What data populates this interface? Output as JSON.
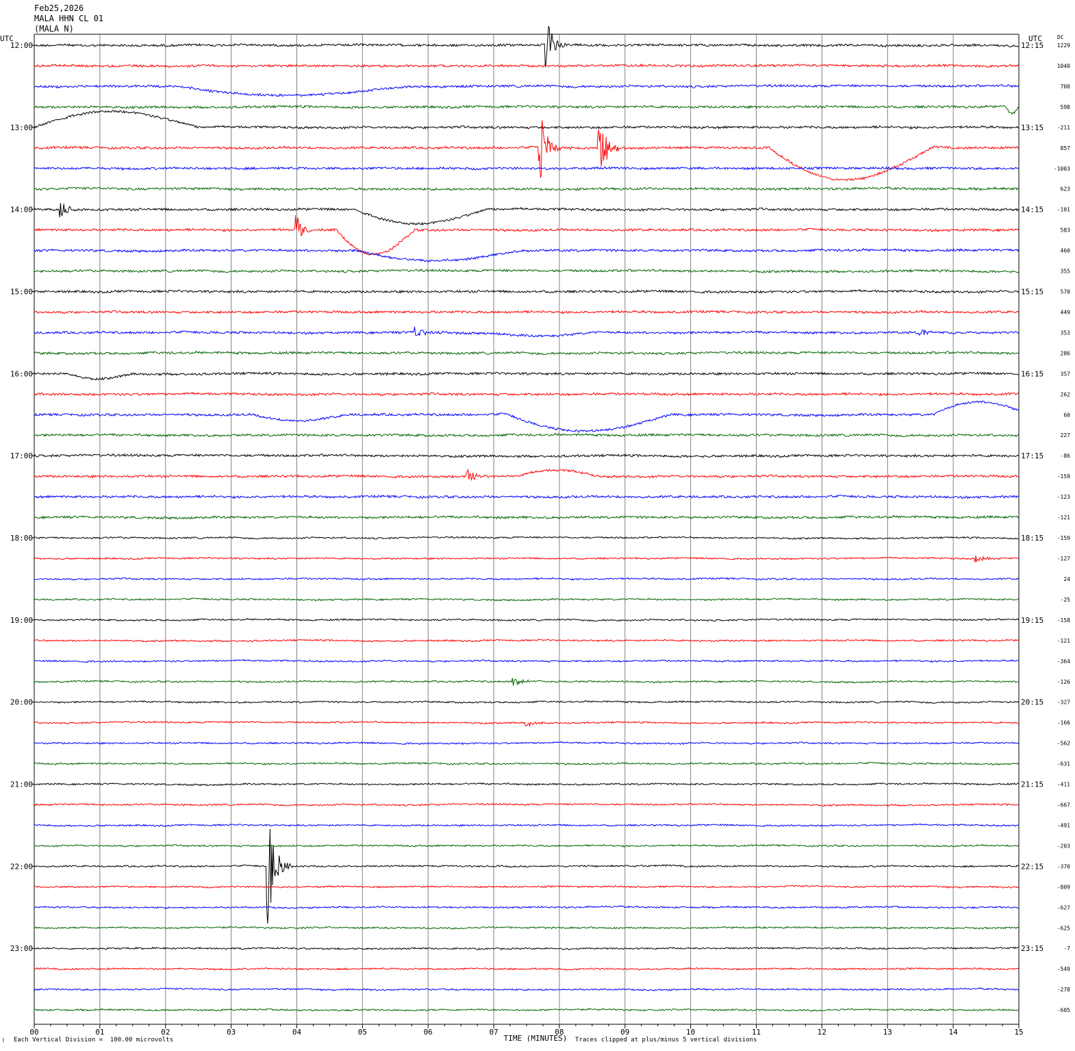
{
  "header": {
    "date": "Feb25,2026",
    "channel": "MALA HHN CL 01",
    "station": "(MALA N)"
  },
  "chart_data": {
    "type": "line",
    "xlabel": "TIME (MINUTES)",
    "x_ticks": [
      "00",
      "01",
      "02",
      "03",
      "04",
      "05",
      "06",
      "07",
      "08",
      "09",
      "10",
      "11",
      "12",
      "13",
      "14",
      "15"
    ],
    "xlim": [
      0,
      15
    ],
    "left_axis_label": "UTC",
    "right_axis_label": "UTC",
    "dc_label": "DC",
    "left_time_labels": [
      "12:00",
      "13:00",
      "14:00",
      "15:00",
      "16:00",
      "17:00",
      "18:00",
      "19:00",
      "20:00",
      "21:00",
      "22:00",
      "23:00"
    ],
    "right_time_labels": [
      "12:15",
      "13:15",
      "14:15",
      "15:15",
      "16:15",
      "17:15",
      "18:15",
      "19:15",
      "20:15",
      "21:15",
      "22:15",
      "23:15"
    ],
    "dc_offsets": [
      "1229",
      "1040",
      "700",
      "598",
      "-211",
      "857",
      "-1003",
      "623",
      "-101",
      "583",
      "460",
      "355",
      "570",
      "449",
      "353",
      "286",
      "357",
      "262",
      "60",
      "227",
      "-86",
      "-159",
      "-123",
      "-121",
      "-159",
      "-127",
      "24",
      "-25",
      "-158",
      "-121",
      "-364",
      "-126",
      "-327",
      "-166",
      "-562",
      "-631",
      "-411",
      "-667",
      "-491",
      "-203",
      "-370",
      "-809",
      "-627",
      "-625",
      "-7",
      "-549",
      "-278",
      "-605"
    ],
    "trace_colors": [
      "#000000",
      "#ff0000",
      "#0000ff",
      "#006400"
    ],
    "grid": true,
    "events": [
      {
        "trace": 0,
        "minute": 7.8,
        "type": "spike",
        "amp": 40
      },
      {
        "trace": 2,
        "minute": 2.2,
        "type": "wave",
        "amp": 16,
        "dur": 3.5
      },
      {
        "trace": 3,
        "minute": 14.8,
        "type": "wave",
        "amp": 12,
        "dur": 0.2
      },
      {
        "trace": 4,
        "minute": 0.0,
        "type": "wave",
        "amp": -28,
        "dur": 2.5
      },
      {
        "trace": 5,
        "minute": 7.7,
        "type": "spike",
        "amp": 60
      },
      {
        "trace": 5,
        "minute": 8.6,
        "type": "spike",
        "amp": 55
      },
      {
        "trace": 5,
        "minute": 11.2,
        "type": "wave",
        "amp": 55,
        "dur": 2.5
      },
      {
        "trace": 8,
        "minute": 0.4,
        "type": "spike",
        "amp": 18
      },
      {
        "trace": 8,
        "minute": 4.9,
        "type": "wave",
        "amp": 24,
        "dur": 2.0
      },
      {
        "trace": 9,
        "minute": 4.0,
        "type": "spike",
        "amp": 22
      },
      {
        "trace": 9,
        "minute": 4.6,
        "type": "wave",
        "amp": 42,
        "dur": 1.2
      },
      {
        "trace": 10,
        "minute": 4.9,
        "type": "wave",
        "amp": 18,
        "dur": 2.5
      },
      {
        "trace": 14,
        "minute": 5.8,
        "type": "spike",
        "amp": 12
      },
      {
        "trace": 14,
        "minute": 7.0,
        "type": "wave",
        "amp": 6,
        "dur": 1.5
      },
      {
        "trace": 14,
        "minute": 13.5,
        "type": "spike",
        "amp": 8
      },
      {
        "trace": 16,
        "minute": 0.5,
        "type": "wave",
        "amp": 8,
        "dur": 1.0
      },
      {
        "trace": 18,
        "minute": 3.3,
        "type": "wave",
        "amp": 10,
        "dur": 1.5
      },
      {
        "trace": 18,
        "minute": 7.2,
        "type": "wave",
        "amp": 28,
        "dur": 2.5
      },
      {
        "trace": 18,
        "minute": 13.7,
        "type": "wave",
        "amp": -22,
        "dur": 1.5
      },
      {
        "trace": 21,
        "minute": 6.6,
        "type": "spike",
        "amp": 14
      },
      {
        "trace": 21,
        "minute": 7.4,
        "type": "wave",
        "amp": -10,
        "dur": 1.2
      },
      {
        "trace": 31,
        "minute": 7.3,
        "type": "spike",
        "amp": 8
      },
      {
        "trace": 33,
        "minute": 7.5,
        "type": "spike",
        "amp": 8
      },
      {
        "trace": 40,
        "minute": 3.55,
        "type": "spike",
        "amp": 95
      },
      {
        "trace": 25,
        "minute": 14.35,
        "type": "spike",
        "amp": 6
      }
    ]
  },
  "footer": {
    "scale_note": "Each Vertical Division =  100.00 microvolts",
    "clip_note": "Traces clipped at plus/minus 5 vertical divisions"
  }
}
